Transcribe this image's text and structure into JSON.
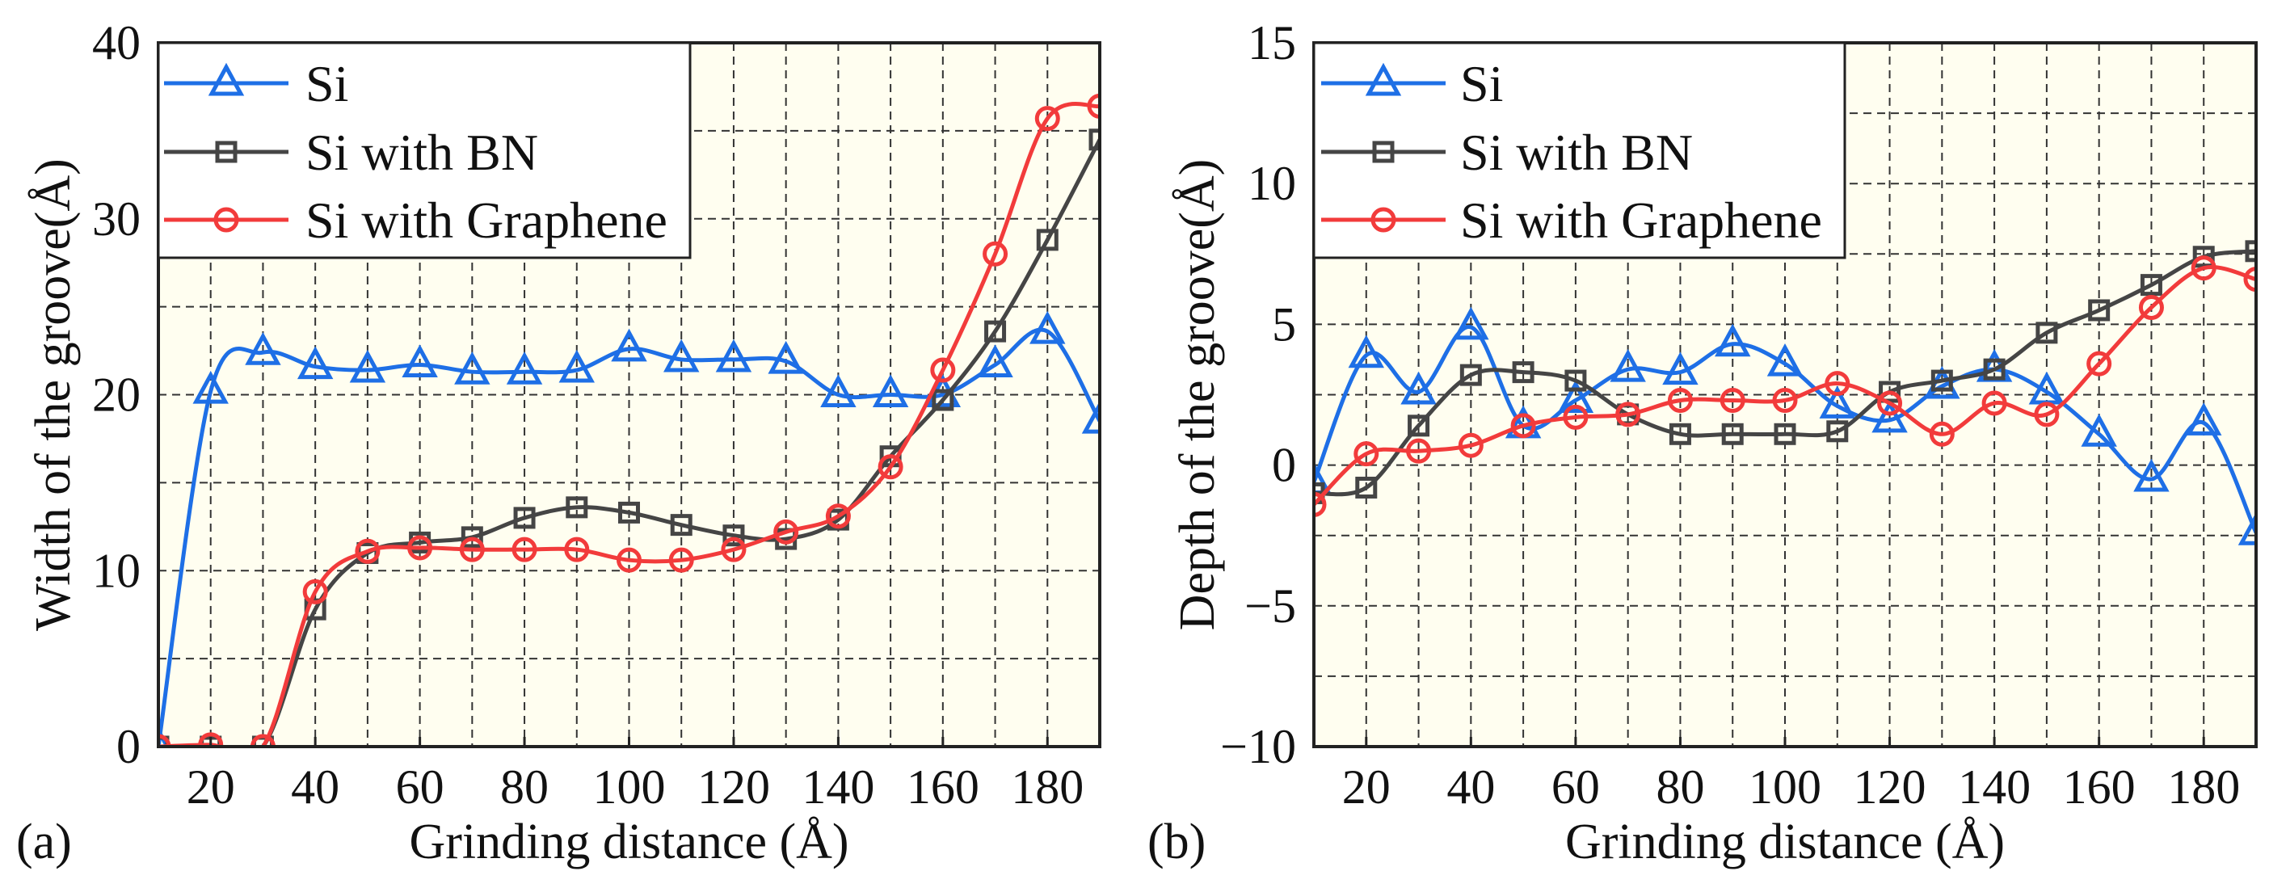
{
  "colors": {
    "Si": "#1e6fe6",
    "Si with BN": "#454545",
    "Si with Graphene": "#f23b3b",
    "plot_bg": "#fffef0"
  },
  "chart_data": [
    {
      "type": "line",
      "panel_label": "(a)",
      "xlabel": "Grinding distance (Å)",
      "ylabel": "Width of the groove(Å)",
      "xlim": [
        10,
        190
      ],
      "ylim": [
        0,
        40
      ],
      "xticks": [
        20,
        40,
        60,
        80,
        100,
        120,
        140,
        160,
        180
      ],
      "yticks": [
        0,
        10,
        20,
        30,
        40
      ],
      "ytick_labels": [
        "0",
        "10",
        "20",
        "30",
        "40"
      ],
      "grid": true,
      "legend_position": "top-left",
      "x": [
        10,
        20,
        30,
        40,
        50,
        60,
        70,
        80,
        90,
        100,
        110,
        120,
        130,
        140,
        150,
        160,
        170,
        180,
        190
      ],
      "series": [
        {
          "name": "Si",
          "marker": "triangle",
          "values": [
            0,
            20.2,
            22.4,
            21.6,
            21.4,
            21.7,
            21.3,
            21.3,
            21.4,
            22.6,
            22.0,
            22.0,
            21.9,
            20.0,
            20.0,
            20.0,
            21.7,
            23.6,
            18.5
          ]
        },
        {
          "name": "Si with BN",
          "marker": "square",
          "values": [
            0,
            0,
            0,
            7.8,
            11.0,
            11.6,
            11.9,
            13.0,
            13.6,
            13.3,
            12.6,
            12.0,
            11.8,
            12.9,
            16.5,
            19.7,
            23.6,
            28.8,
            34.5
          ]
        },
        {
          "name": "Si with Graphene",
          "marker": "circle",
          "values": [
            0,
            0.1,
            0,
            8.8,
            11.1,
            11.3,
            11.2,
            11.2,
            11.2,
            10.6,
            10.6,
            11.2,
            12.2,
            13.1,
            15.9,
            21.4,
            28.0,
            35.7,
            36.4
          ]
        }
      ]
    },
    {
      "type": "line",
      "panel_label": "(b)",
      "xlabel": "Grinding distance (Å)",
      "ylabel": "Depth of the groove(Å)",
      "xlim": [
        10,
        190
      ],
      "ylim": [
        -10,
        15
      ],
      "xticks": [
        20,
        40,
        60,
        80,
        100,
        120,
        140,
        160,
        180
      ],
      "yticks": [
        -10,
        -5,
        0,
        5,
        10,
        15
      ],
      "ytick_labels": [
        "−10",
        "−5",
        "0",
        "5",
        "10",
        "15"
      ],
      "grid": true,
      "legend_position": "top-left",
      "x": [
        10,
        20,
        30,
        40,
        50,
        60,
        70,
        80,
        90,
        100,
        110,
        120,
        130,
        140,
        150,
        160,
        170,
        180,
        190
      ],
      "series": [
        {
          "name": "Si",
          "marker": "triangle",
          "values": [
            -0.6,
            3.9,
            2.6,
            4.9,
            1.4,
            2.3,
            3.4,
            3.3,
            4.3,
            3.6,
            2.1,
            1.6,
            2.8,
            3.4,
            2.6,
            1.1,
            -0.5,
            1.5,
            -2.4
          ]
        },
        {
          "name": "Si with BN",
          "marker": "square",
          "values": [
            -1.0,
            -0.8,
            1.4,
            3.2,
            3.3,
            3.0,
            1.8,
            1.1,
            1.1,
            1.1,
            1.2,
            2.6,
            3.0,
            3.4,
            4.7,
            5.5,
            6.4,
            7.4,
            7.6
          ]
        },
        {
          "name": "Si with Graphene",
          "marker": "circle",
          "values": [
            -1.4,
            0.4,
            0.5,
            0.7,
            1.4,
            1.7,
            1.8,
            2.3,
            2.3,
            2.3,
            2.9,
            2.2,
            1.1,
            2.2,
            1.8,
            3.6,
            5.6,
            7.0,
            6.6
          ]
        }
      ]
    }
  ]
}
